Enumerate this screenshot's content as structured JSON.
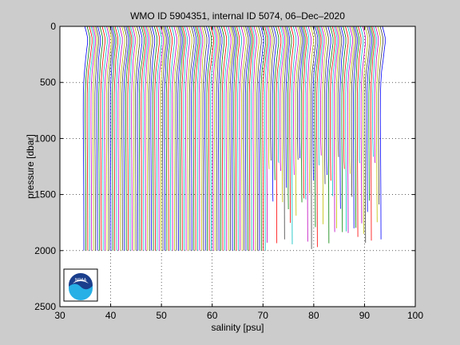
{
  "chart_data": {
    "type": "line",
    "title": "WMO ID 5904351, internal ID 5074, 06–Dec–2020",
    "xlabel": "salinity [psu]",
    "ylabel": "pressure [dbar]",
    "xlim": [
      30,
      100
    ],
    "ylim": [
      2500,
      0
    ],
    "y_reversed": true,
    "xticks": [
      "30",
      "40",
      "50",
      "60",
      "70",
      "80",
      "90",
      "100"
    ],
    "yticks": [
      "0",
      "500",
      "1000",
      "1500",
      "2000",
      "2500"
    ],
    "grid": true,
    "grid_style": "dotted",
    "series_colors": [
      "#0000ff",
      "#008000",
      "#ff0000",
      "#00bfbf",
      "#bf00bf",
      "#bfbf00",
      "#404040"
    ],
    "profile_count": 155,
    "profile_offset_psu": 0.38,
    "profile_salinity": {
      "pressure": [
        0,
        50,
        100,
        150,
        200,
        300,
        400,
        500,
        600,
        800,
        1000,
        1200,
        1500,
        1800,
        2000
      ],
      "salinity": [
        34.9,
        35.2,
        35.45,
        35.45,
        35.3,
        35.05,
        34.85,
        34.7,
        34.62,
        34.6,
        34.62,
        34.66,
        34.7,
        34.72,
        34.73
      ]
    },
    "profile_max_depth": {
      "note_ranges": [
        {
          "profile_from": 1,
          "profile_to": 95,
          "max_pressure_dbar": 2000
        },
        {
          "profile_from": 96,
          "profile_to": 155,
          "max_pressure_dbar_range": [
            1150,
            1990
          ]
        }
      ]
    },
    "logo": "noaa-logo"
  }
}
